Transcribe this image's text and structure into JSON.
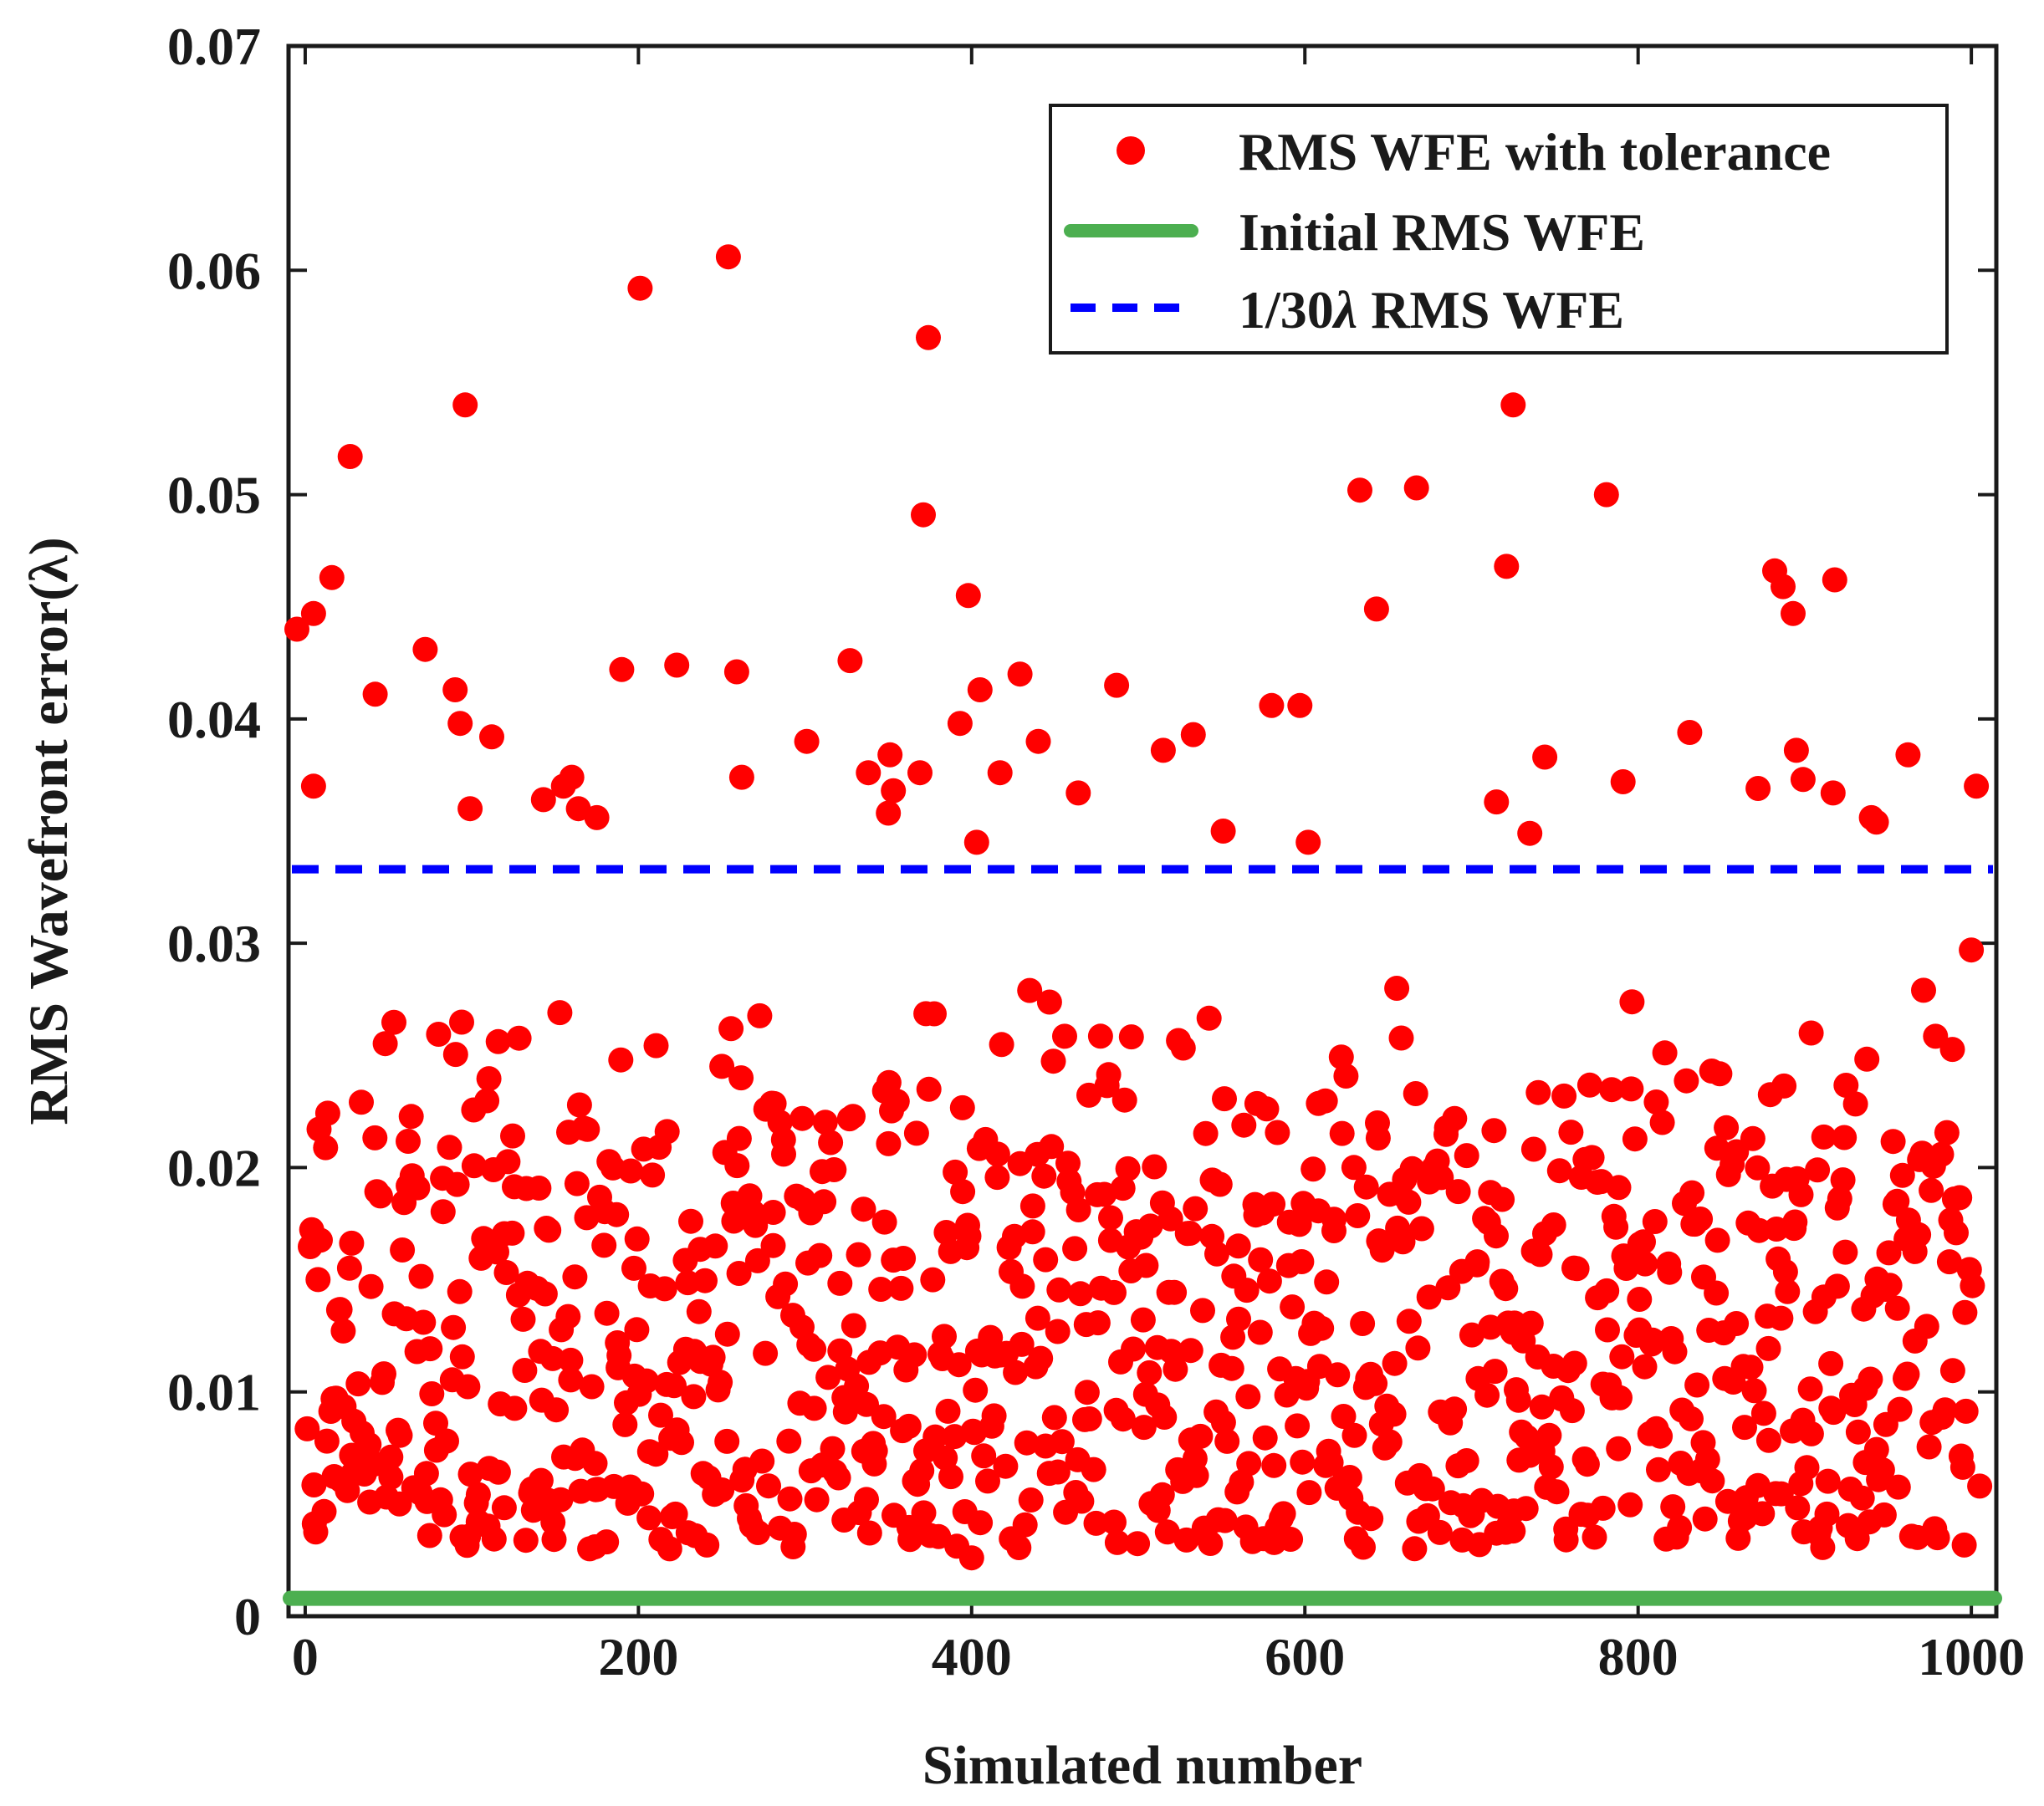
{
  "chart_data": {
    "type": "scatter",
    "xlabel": "Simulated number",
    "ylabel": "RMS Wavefront error(λ)",
    "xlim": [
      -10,
      1015
    ],
    "ylim": [
      0,
      0.07
    ],
    "x_ticks": [
      0,
      200,
      400,
      600,
      800,
      1000
    ],
    "x_tick_labels": [
      "0",
      "200",
      "400",
      "600",
      "800",
      "1000"
    ],
    "y_ticks": [
      0,
      0.01,
      0.02,
      0.03,
      0.04,
      0.05,
      0.06,
      0.07
    ],
    "y_tick_labels": [
      "0",
      "0.01",
      "0.02",
      "0.03",
      "0.04",
      "0.05",
      "0.06",
      "0.07"
    ],
    "legend_position": "top-right",
    "series": [
      {
        "name": "RMS WFE with tolerance",
        "kind": "scatter",
        "color": "#ff0000",
        "count": 1000,
        "distribution": {
          "bulk_min": 0.003,
          "bulk_max": 0.03,
          "seed": 7
        },
        "highlight_points": [
          {
            "x": -5,
            "y": 0.044
          },
          {
            "x": 5,
            "y": 0.0447
          },
          {
            "x": 5,
            "y": 0.037
          },
          {
            "x": 16,
            "y": 0.0463
          },
          {
            "x": 27,
            "y": 0.0517
          },
          {
            "x": 42,
            "y": 0.0411
          },
          {
            "x": 72,
            "y": 0.0431
          },
          {
            "x": 90,
            "y": 0.0413
          },
          {
            "x": 93,
            "y": 0.0398
          },
          {
            "x": 96,
            "y": 0.054
          },
          {
            "x": 99,
            "y": 0.036
          },
          {
            "x": 112,
            "y": 0.0392
          },
          {
            "x": 143,
            "y": 0.0364
          },
          {
            "x": 155,
            "y": 0.037
          },
          {
            "x": 160,
            "y": 0.0374
          },
          {
            "x": 164,
            "y": 0.036
          },
          {
            "x": 175,
            "y": 0.0356
          },
          {
            "x": 190,
            "y": 0.0422
          },
          {
            "x": 201,
            "y": 0.0592
          },
          {
            "x": 223,
            "y": 0.0424
          },
          {
            "x": 254,
            "y": 0.0606
          },
          {
            "x": 259,
            "y": 0.0421
          },
          {
            "x": 262,
            "y": 0.0374
          },
          {
            "x": 301,
            "y": 0.039
          },
          {
            "x": 327,
            "y": 0.0426
          },
          {
            "x": 338,
            "y": 0.0376
          },
          {
            "x": 350,
            "y": 0.0358
          },
          {
            "x": 351,
            "y": 0.0384
          },
          {
            "x": 353,
            "y": 0.0368
          },
          {
            "x": 369,
            "y": 0.0376
          },
          {
            "x": 371,
            "y": 0.0491
          },
          {
            "x": 374,
            "y": 0.057
          },
          {
            "x": 393,
            "y": 0.0398
          },
          {
            "x": 398,
            "y": 0.0455
          },
          {
            "x": 403,
            "y": 0.0345
          },
          {
            "x": 405,
            "y": 0.0413
          },
          {
            "x": 417,
            "y": 0.0376
          },
          {
            "x": 429,
            "y": 0.042
          },
          {
            "x": 440,
            "y": 0.039
          },
          {
            "x": 464,
            "y": 0.0367
          },
          {
            "x": 487,
            "y": 0.0415
          },
          {
            "x": 515,
            "y": 0.0386
          },
          {
            "x": 533,
            "y": 0.0393
          },
          {
            "x": 551,
            "y": 0.035
          },
          {
            "x": 580,
            "y": 0.0406
          },
          {
            "x": 597,
            "y": 0.0406
          },
          {
            "x": 602,
            "y": 0.0345
          },
          {
            "x": 633,
            "y": 0.0502
          },
          {
            "x": 643,
            "y": 0.0449
          },
          {
            "x": 667,
            "y": 0.0503
          },
          {
            "x": 715,
            "y": 0.0363
          },
          {
            "x": 721,
            "y": 0.0468
          },
          {
            "x": 725,
            "y": 0.054
          },
          {
            "x": 735,
            "y": 0.0349
          },
          {
            "x": 744,
            "y": 0.0383
          },
          {
            "x": 781,
            "y": 0.05
          },
          {
            "x": 791,
            "y": 0.0372
          },
          {
            "x": 831,
            "y": 0.0394
          },
          {
            "x": 872,
            "y": 0.0369
          },
          {
            "x": 882,
            "y": 0.0466
          },
          {
            "x": 887,
            "y": 0.0459
          },
          {
            "x": 893,
            "y": 0.0447
          },
          {
            "x": 895,
            "y": 0.0386
          },
          {
            "x": 899,
            "y": 0.0373
          },
          {
            "x": 917,
            "y": 0.0367
          },
          {
            "x": 918,
            "y": 0.0462
          },
          {
            "x": 940,
            "y": 0.0356
          },
          {
            "x": 943,
            "y": 0.0354
          },
          {
            "x": 962,
            "y": 0.0384
          },
          {
            "x": 1003,
            "y": 0.037
          },
          {
            "x": 1000,
            "y": 0.0297
          },
          {
            "x": 1005,
            "y": 0.0058
          },
          {
            "x": 400,
            "y": 0.0026
          },
          {
            "x": 715,
            "y": 0.0037
          },
          {
            "x": 725,
            "y": 0.0038
          },
          {
            "x": 548,
            "y": 0.0043
          }
        ]
      },
      {
        "name": "Initial RMS WFE",
        "kind": "line",
        "color": "#4caf50",
        "y": 0.0005
      },
      {
        "name": "1/30λ RMS WFE",
        "kind": "dashed-line",
        "color": "#0000ff",
        "y": 0.0333
      }
    ],
    "legend_labels": [
      {
        "main": "RMS WFE with tolerance"
      },
      {
        "main": "Initial RMS WFE"
      },
      {
        "prefix": "1/30",
        "lambda": "λ",
        "suffix": " RMS WFE"
      }
    ]
  }
}
